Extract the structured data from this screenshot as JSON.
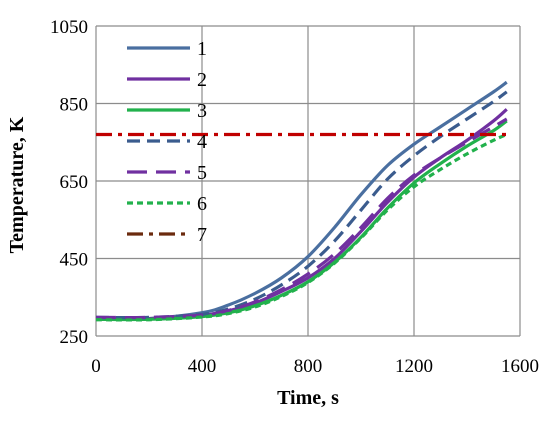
{
  "chart_data": {
    "type": "line",
    "xlabel": "Time, s",
    "ylabel": "Temperature, K",
    "xlim": [
      0,
      1600
    ],
    "ylim": [
      250,
      1050
    ],
    "xticks": [
      0,
      400,
      800,
      1200,
      1600
    ],
    "yticks": [
      250,
      450,
      650,
      850,
      1050
    ],
    "grid": true,
    "legend_position": "top-left",
    "series": [
      {
        "name": "1",
        "color": "#4A6FA0",
        "style": "solid",
        "x": [
          0,
          200,
          400,
          500,
          600,
          700,
          800,
          900,
          1000,
          1100,
          1200,
          1300,
          1400,
          1500,
          1550
        ],
        "y": [
          295,
          295,
          310,
          330,
          360,
          400,
          455,
          530,
          615,
          690,
          745,
          790,
          835,
          880,
          905
        ]
      },
      {
        "name": "2",
        "color": "#7030A0",
        "style": "solid",
        "x": [
          0,
          200,
          400,
          500,
          600,
          700,
          800,
          900,
          1000,
          1100,
          1200,
          1300,
          1400,
          1500,
          1550
        ],
        "y": [
          295,
          295,
          303,
          315,
          335,
          365,
          400,
          450,
          520,
          595,
          660,
          710,
          755,
          805,
          835
        ]
      },
      {
        "name": "3",
        "color": "#22B14C",
        "style": "solid",
        "x": [
          0,
          200,
          400,
          500,
          600,
          700,
          800,
          900,
          1000,
          1100,
          1200,
          1300,
          1400,
          1500,
          1550
        ],
        "y": [
          293,
          293,
          300,
          310,
          328,
          355,
          390,
          440,
          505,
          580,
          645,
          695,
          740,
          780,
          805
        ]
      },
      {
        "name": "4",
        "color": "#3B5C8E",
        "style": "dashed",
        "x": [
          0,
          200,
          400,
          500,
          600,
          700,
          800,
          900,
          1000,
          1100,
          1200,
          1300,
          1400,
          1500,
          1550
        ],
        "y": [
          298,
          298,
          306,
          320,
          345,
          382,
          430,
          495,
          575,
          655,
          715,
          765,
          810,
          855,
          880
        ]
      },
      {
        "name": "5",
        "color": "#7030A0",
        "style": "longdash",
        "x": [
          0,
          200,
          400,
          500,
          600,
          700,
          800,
          900,
          1000,
          1100,
          1200,
          1300,
          1400,
          1500,
          1550
        ],
        "y": [
          298,
          298,
          304,
          316,
          338,
          370,
          410,
          462,
          530,
          605,
          665,
          710,
          750,
          790,
          810
        ]
      },
      {
        "name": "6",
        "color": "#22B14C",
        "style": "dotted",
        "x": [
          0,
          200,
          400,
          500,
          600,
          700,
          800,
          900,
          1000,
          1100,
          1200,
          1300,
          1400,
          1500,
          1550
        ],
        "y": [
          292,
          292,
          299,
          308,
          325,
          352,
          388,
          438,
          503,
          575,
          635,
          680,
          720,
          755,
          770
        ]
      },
      {
        "name": "7",
        "color": "#C00000",
        "legend_color": "#6B2A0E",
        "style": "dashdot",
        "x": [
          0,
          1550
        ],
        "y": [
          770,
          770
        ]
      }
    ]
  }
}
